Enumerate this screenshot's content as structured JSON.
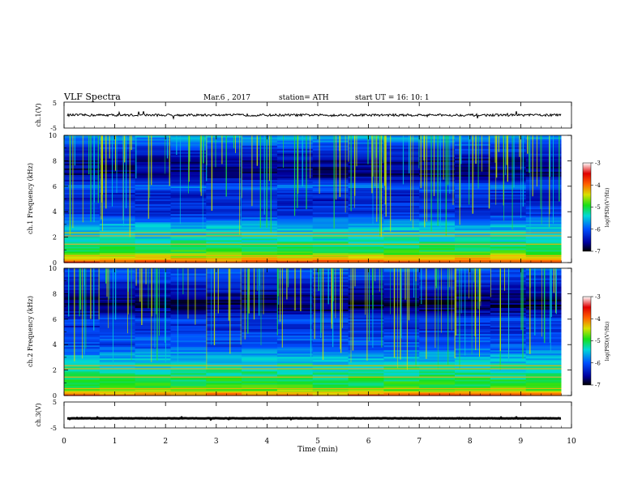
{
  "header": {
    "title": "VLF  Spectra",
    "date": "Mar.6  , 2017",
    "station": "station= ATH",
    "start": "start  UT  =    16: 10: 1"
  },
  "chart_data": [
    {
      "type": "line",
      "id": "ch1",
      "ylabel": "ch.1(V)",
      "ylim": [
        -5,
        5
      ],
      "ytick_labels": [
        "5",
        "-5"
      ],
      "x_range_min": [
        0,
        9.8
      ],
      "level": 0.0
    },
    {
      "type": "heatmap",
      "id": "ch1_spec",
      "ylabel": "ch.1\nFrequency (kHz)",
      "ylim": [
        0,
        10
      ],
      "ytick_labels": [
        "0",
        "2",
        "4",
        "6",
        "8",
        "10"
      ],
      "x_range_min": [
        0,
        9.8
      ],
      "colorbar": {
        "label": "log(PSD)(V²/Hz)",
        "range": [
          -7,
          -3
        ],
        "tick_labels": [
          "-3",
          "-4",
          "-5",
          "-6",
          "-7"
        ]
      },
      "rows_log_psd": [
        [
          0.0,
          -3.6
        ],
        [
          0.3,
          -4.2
        ],
        [
          0.6,
          -4.6
        ],
        [
          1.0,
          -5.0
        ],
        [
          1.5,
          -5.2
        ],
        [
          2.0,
          -5.4
        ],
        [
          2.5,
          -5.5
        ],
        [
          3.0,
          -5.6
        ],
        [
          3.5,
          -6.0
        ],
        [
          4.0,
          -6.3
        ],
        [
          4.5,
          -6.2
        ],
        [
          5.0,
          -6.4
        ],
        [
          5.5,
          -6.3
        ],
        [
          6.0,
          -5.9
        ],
        [
          6.5,
          -6.4
        ],
        [
          7.0,
          -6.7
        ],
        [
          7.5,
          -6.6
        ],
        [
          8.0,
          -6.6
        ],
        [
          8.5,
          -6.4
        ],
        [
          9.0,
          -6.2
        ],
        [
          9.5,
          -5.9
        ],
        [
          10.0,
          -5.6
        ]
      ]
    },
    {
      "type": "heatmap",
      "id": "ch2_spec",
      "ylabel": "ch.2\nFrequency (kHz)",
      "ylim": [
        0,
        10
      ],
      "ytick_labels": [
        "0",
        "2",
        "4",
        "6",
        "8",
        "10"
      ],
      "x_range_min": [
        0,
        9.8
      ],
      "colorbar": {
        "label": "log(PSD)(V²/Hz)",
        "range": [
          -7,
          -3
        ],
        "tick_labels": [
          "-3",
          "-4",
          "-5",
          "-6",
          "-7"
        ]
      },
      "rows_log_psd": [
        [
          0.0,
          -3.8
        ],
        [
          0.3,
          -4.4
        ],
        [
          0.6,
          -4.9
        ],
        [
          1.0,
          -5.0
        ],
        [
          1.5,
          -5.1
        ],
        [
          2.0,
          -5.3
        ],
        [
          2.5,
          -5.4
        ],
        [
          3.0,
          -5.6
        ],
        [
          3.5,
          -5.8
        ],
        [
          4.0,
          -6.1
        ],
        [
          4.5,
          -6.0
        ],
        [
          5.0,
          -6.2
        ],
        [
          5.5,
          -6.3
        ],
        [
          6.0,
          -6.1
        ],
        [
          6.5,
          -6.5
        ],
        [
          7.0,
          -6.8
        ],
        [
          7.5,
          -6.7
        ],
        [
          8.0,
          -6.6
        ],
        [
          8.5,
          -6.4
        ],
        [
          9.0,
          -6.3
        ],
        [
          9.5,
          -6.1
        ],
        [
          10.0,
          -6.0
        ]
      ]
    },
    {
      "type": "line",
      "id": "ch3",
      "ylabel": "ch.3(V)",
      "ylim": [
        -5,
        5
      ],
      "ytick_labels": [
        "5",
        "-5"
      ],
      "x_range_min": [
        0,
        9.8
      ],
      "level": -1.3
    }
  ],
  "xaxis": {
    "label": "Time  (min)",
    "range": [
      0,
      10
    ],
    "tick_labels": [
      "0",
      "1",
      "2",
      "3",
      "4",
      "5",
      "6",
      "7",
      "8",
      "9",
      "10"
    ]
  }
}
